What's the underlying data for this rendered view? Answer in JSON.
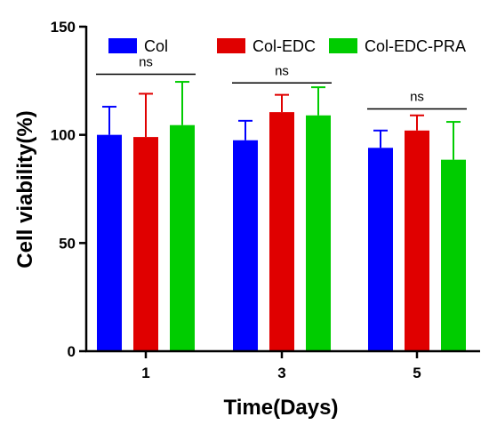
{
  "chart_data": {
    "type": "bar",
    "xlabel": "Time(Days)",
    "ylabel": "Cell viability(%)",
    "ylim": [
      0,
      150
    ],
    "yticks": [
      0,
      50,
      100,
      150
    ],
    "categories": [
      "1",
      "3",
      "5"
    ],
    "series": [
      {
        "name": "Col",
        "color": "#0000ff",
        "values": [
          100,
          97.5,
          94
        ],
        "errors": [
          13,
          9,
          8
        ]
      },
      {
        "name": "Col-EDC",
        "color": "#e00000",
        "values": [
          99,
          110.5,
          102
        ],
        "errors": [
          20,
          8,
          7
        ]
      },
      {
        "name": "Col-EDC-PRA",
        "color": "#00cc00",
        "values": [
          104.5,
          109,
          88.5
        ],
        "errors": [
          20,
          13,
          17.5
        ]
      }
    ],
    "legend_position": "top",
    "annotations": [
      {
        "text": "ns",
        "category": "1",
        "y": 128
      },
      {
        "text": "ns",
        "category": "3",
        "y": 124
      },
      {
        "text": "ns",
        "category": "5",
        "y": 112
      }
    ],
    "grid": false
  }
}
